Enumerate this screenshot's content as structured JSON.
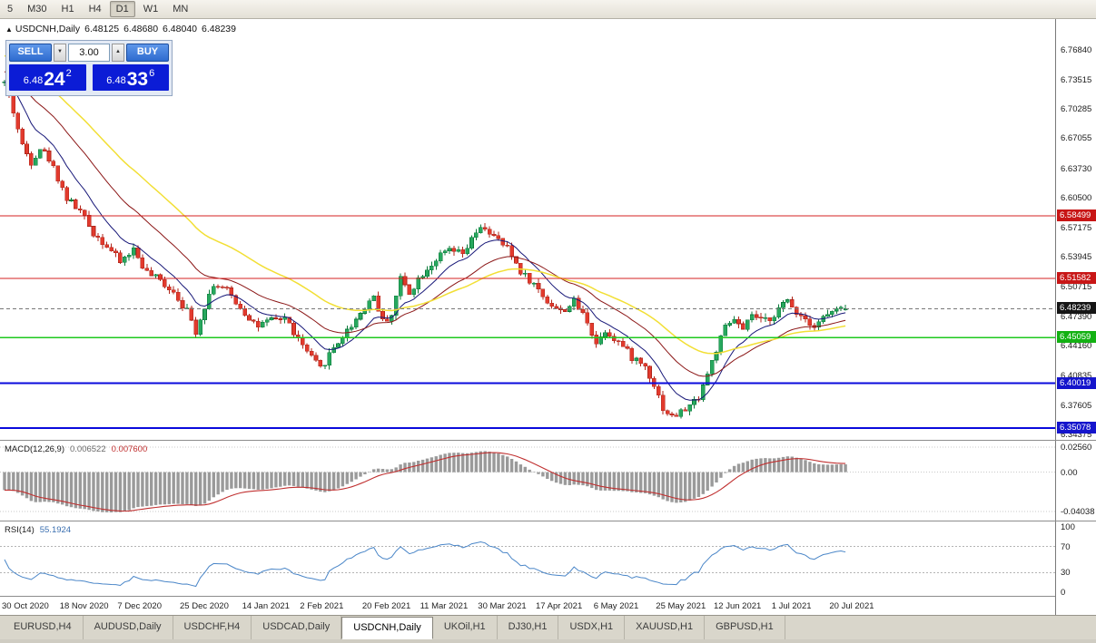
{
  "toolbar": {
    "timeframes": [
      {
        "label": "5",
        "active": false
      },
      {
        "label": "M30",
        "active": false
      },
      {
        "label": "H1",
        "active": false
      },
      {
        "label": "H4",
        "active": false
      },
      {
        "label": "D1",
        "active": true
      },
      {
        "label": "W1",
        "active": false
      },
      {
        "label": "MN",
        "active": false
      }
    ]
  },
  "caption": {
    "marker": "▲",
    "symbol": "USDCNH,Daily",
    "open": "6.48125",
    "high": "6.48680",
    "low": "6.48040",
    "close": "6.48239"
  },
  "trade_panel": {
    "sell_label": "SELL",
    "buy_label": "BUY",
    "volume": "3.00",
    "spinner_down": "▼",
    "spinner_up": "▲",
    "sell_price": {
      "big": "6.48",
      "pips": "24",
      "sup": "2"
    },
    "buy_price": {
      "big": "6.48",
      "pips": "33",
      "sup": "6"
    },
    "colors": {
      "button": "#2e6bcf",
      "display": "#0b1cd6"
    }
  },
  "chart_data": {
    "type": "candlestick",
    "symbol": "USDCNH",
    "timeframe": "Daily",
    "title": "USDCNH,Daily",
    "current_ohlc": {
      "open": 6.48125,
      "high": 6.4868,
      "low": 6.4804,
      "close": 6.48239
    },
    "price_axis": {
      "min": 6.3378,
      "max": 6.802,
      "ticks": [
        6.7684,
        6.73515,
        6.70285,
        6.67055,
        6.6373,
        6.605,
        6.57175,
        6.53945,
        6.50715,
        6.4739,
        6.4416,
        6.40835,
        6.37605,
        6.34375
      ],
      "badges": [
        {
          "value": 6.58499,
          "label": "6.58499",
          "color": "#c81616"
        },
        {
          "value": 6.51582,
          "label": "6.51582",
          "color": "#c81616"
        },
        {
          "value": 6.48239,
          "label": "6.48239",
          "color": "#151515"
        },
        {
          "value": 6.45059,
          "label": "6.45059",
          "color": "#13b113"
        },
        {
          "value": 6.40019,
          "label": "6.40019",
          "color": "#1515cc"
        },
        {
          "value": 6.35078,
          "label": "6.35078",
          "color": "#1515cc"
        }
      ]
    },
    "levels": [
      {
        "value": 6.58499,
        "color": "#d42020",
        "width": 1.2
      },
      {
        "value": 6.51582,
        "color": "#d42020",
        "width": 1.2
      },
      {
        "value": 6.45059,
        "color": "#1ec81e",
        "width": 1.8
      },
      {
        "value": 6.40019,
        "color": "#0a0adc",
        "width": 1.8
      },
      {
        "value": 6.35078,
        "color": "#0a0adc",
        "width": 2.4
      }
    ],
    "current_price_line": {
      "value": 6.48239,
      "color": "#777777"
    },
    "x_axis": {
      "labels": [
        {
          "text": "30 Oct 2020",
          "index": 0
        },
        {
          "text": "18 Nov 2020",
          "index": 13
        },
        {
          "text": "7 Dec 2020",
          "index": 26
        },
        {
          "text": "25 Dec 2020",
          "index": 40
        },
        {
          "text": "14 Jan 2021",
          "index": 54
        },
        {
          "text": "2 Feb 2021",
          "index": 67
        },
        {
          "text": "20 Feb 2021",
          "index": 81
        },
        {
          "text": "11 Mar 2021",
          "index": 94
        },
        {
          "text": "30 Mar 2021",
          "index": 107
        },
        {
          "text": "17 Apr 2021",
          "index": 120
        },
        {
          "text": "6 May 2021",
          "index": 133
        },
        {
          "text": "25 May 2021",
          "index": 147
        },
        {
          "text": "12 Jun 2021",
          "index": 160
        },
        {
          "text": "1 Jul 2021",
          "index": 173
        },
        {
          "text": "20 Jul 2021",
          "index": 186
        }
      ]
    },
    "candles": {
      "count": 190,
      "seed": 42,
      "noise": 0.0085,
      "wick": 0.005,
      "last_open": 6.48125,
      "last_high": 6.4868,
      "last_low": 6.4804,
      "last_close": 6.48239,
      "up_color": "#27a85e",
      "up_border": "#0b7a3a",
      "down_color": "#e23a2d",
      "down_border": "#b0261b",
      "anchors": [
        [
          0,
          6.732
        ],
        [
          2,
          6.7
        ],
        [
          4,
          6.662
        ],
        [
          6,
          6.645
        ],
        [
          8,
          6.66
        ],
        [
          10,
          6.648
        ],
        [
          12,
          6.627
        ],
        [
          14,
          6.604
        ],
        [
          17,
          6.59
        ],
        [
          20,
          6.566
        ],
        [
          23,
          6.552
        ],
        [
          26,
          6.534
        ],
        [
          29,
          6.548
        ],
        [
          32,
          6.522
        ],
        [
          35,
          6.513
        ],
        [
          38,
          6.502
        ],
        [
          41,
          6.48
        ],
        [
          43,
          6.458
        ],
        [
          45,
          6.486
        ],
        [
          47,
          6.51
        ],
        [
          50,
          6.502
        ],
        [
          54,
          6.478
        ],
        [
          57,
          6.463
        ],
        [
          60,
          6.469
        ],
        [
          63,
          6.473
        ],
        [
          66,
          6.448
        ],
        [
          69,
          6.428
        ],
        [
          71,
          6.416
        ],
        [
          74,
          6.44
        ],
        [
          77,
          6.458
        ],
        [
          80,
          6.478
        ],
        [
          83,
          6.497
        ],
        [
          85,
          6.468
        ],
        [
          87,
          6.476
        ],
        [
          89,
          6.516
        ],
        [
          91,
          6.501
        ],
        [
          94,
          6.522
        ],
        [
          97,
          6.537
        ],
        [
          100,
          6.547
        ],
        [
          103,
          6.542
        ],
        [
          106,
          6.566
        ],
        [
          108,
          6.572
        ],
        [
          110,
          6.561
        ],
        [
          113,
          6.549
        ],
        [
          116,
          6.524
        ],
        [
          119,
          6.509
        ],
        [
          122,
          6.491
        ],
        [
          125,
          6.479
        ],
        [
          128,
          6.49
        ],
        [
          131,
          6.469
        ],
        [
          133,
          6.444
        ],
        [
          135,
          6.459
        ],
        [
          138,
          6.446
        ],
        [
          141,
          6.429
        ],
        [
          144,
          6.419
        ],
        [
          146,
          6.399
        ],
        [
          148,
          6.373
        ],
        [
          150,
          6.363
        ],
        [
          152,
          6.368
        ],
        [
          154,
          6.375
        ],
        [
          156,
          6.386
        ],
        [
          158,
          6.411
        ],
        [
          160,
          6.437
        ],
        [
          162,
          6.461
        ],
        [
          164,
          6.471
        ],
        [
          166,
          6.457
        ],
        [
          168,
          6.476
        ],
        [
          170,
          6.468
        ],
        [
          172,
          6.472
        ],
        [
          174,
          6.482
        ],
        [
          176,
          6.491
        ],
        [
          178,
          6.479
        ],
        [
          180,
          6.472
        ],
        [
          182,
          6.464
        ],
        [
          184,
          6.473
        ],
        [
          186,
          6.479
        ],
        [
          189,
          6.48239
        ]
      ]
    },
    "moving_averages": [
      {
        "name": "ma-fast",
        "period": 10,
        "color": "#171778",
        "width": 1,
        "seed_offset": 0
      },
      {
        "name": "ma-mid",
        "period": 25,
        "color": "#8b1616",
        "width": 1,
        "seed_offset": 0.012
      },
      {
        "name": "ma-slow",
        "period": 45,
        "color": "#f2df35",
        "width": 1.5,
        "seed_offset": 0.03
      }
    ],
    "macd": {
      "label": "MACD(12,26,9)",
      "value": "0.006522",
      "signal_value": "0.007600",
      "axis": {
        "max": 0.0312,
        "min": -0.0495,
        "ticks": [
          {
            "v": 0.0256,
            "label": "0.02560"
          },
          {
            "v": 0,
            "label": "0.00"
          },
          {
            "v": -0.04038,
            "label": "-0.04038"
          }
        ]
      },
      "histogram_color": "#9a9a9a",
      "signal_color": "#c03030",
      "seed_fast": -0.002,
      "seed_slow": 0.018
    },
    "rsi": {
      "label": "RSI(14)",
      "value": "55.1924",
      "color": "#4a86c8",
      "axis": {
        "top_value": 106.9,
        "bottom_value": -4.2,
        "ticks": [
          {
            "v": 100,
            "label": "100"
          },
          {
            "v": 70,
            "label": "70"
          },
          {
            "v": 30,
            "label": "30"
          },
          {
            "v": 0,
            "label": "0"
          }
        ]
      },
      "guides": [
        70,
        30
      ],
      "seed_gain": 0.003,
      "seed_loss": 0.004
    }
  },
  "tabs": {
    "items": [
      {
        "label": "EURUSD,H4",
        "active": false
      },
      {
        "label": "AUDUSD,Daily",
        "active": false
      },
      {
        "label": "USDCHF,H4",
        "active": false
      },
      {
        "label": "USDCAD,Daily",
        "active": false
      },
      {
        "label": "USDCNH,Daily",
        "active": true
      },
      {
        "label": "UKOil,H1",
        "active": false
      },
      {
        "label": "DJ30,H1",
        "active": false
      },
      {
        "label": "USDX,H1",
        "active": false
      },
      {
        "label": "XAUUSD,H1",
        "active": false
      },
      {
        "label": "GBPUSD,H1",
        "active": false
      }
    ]
  }
}
